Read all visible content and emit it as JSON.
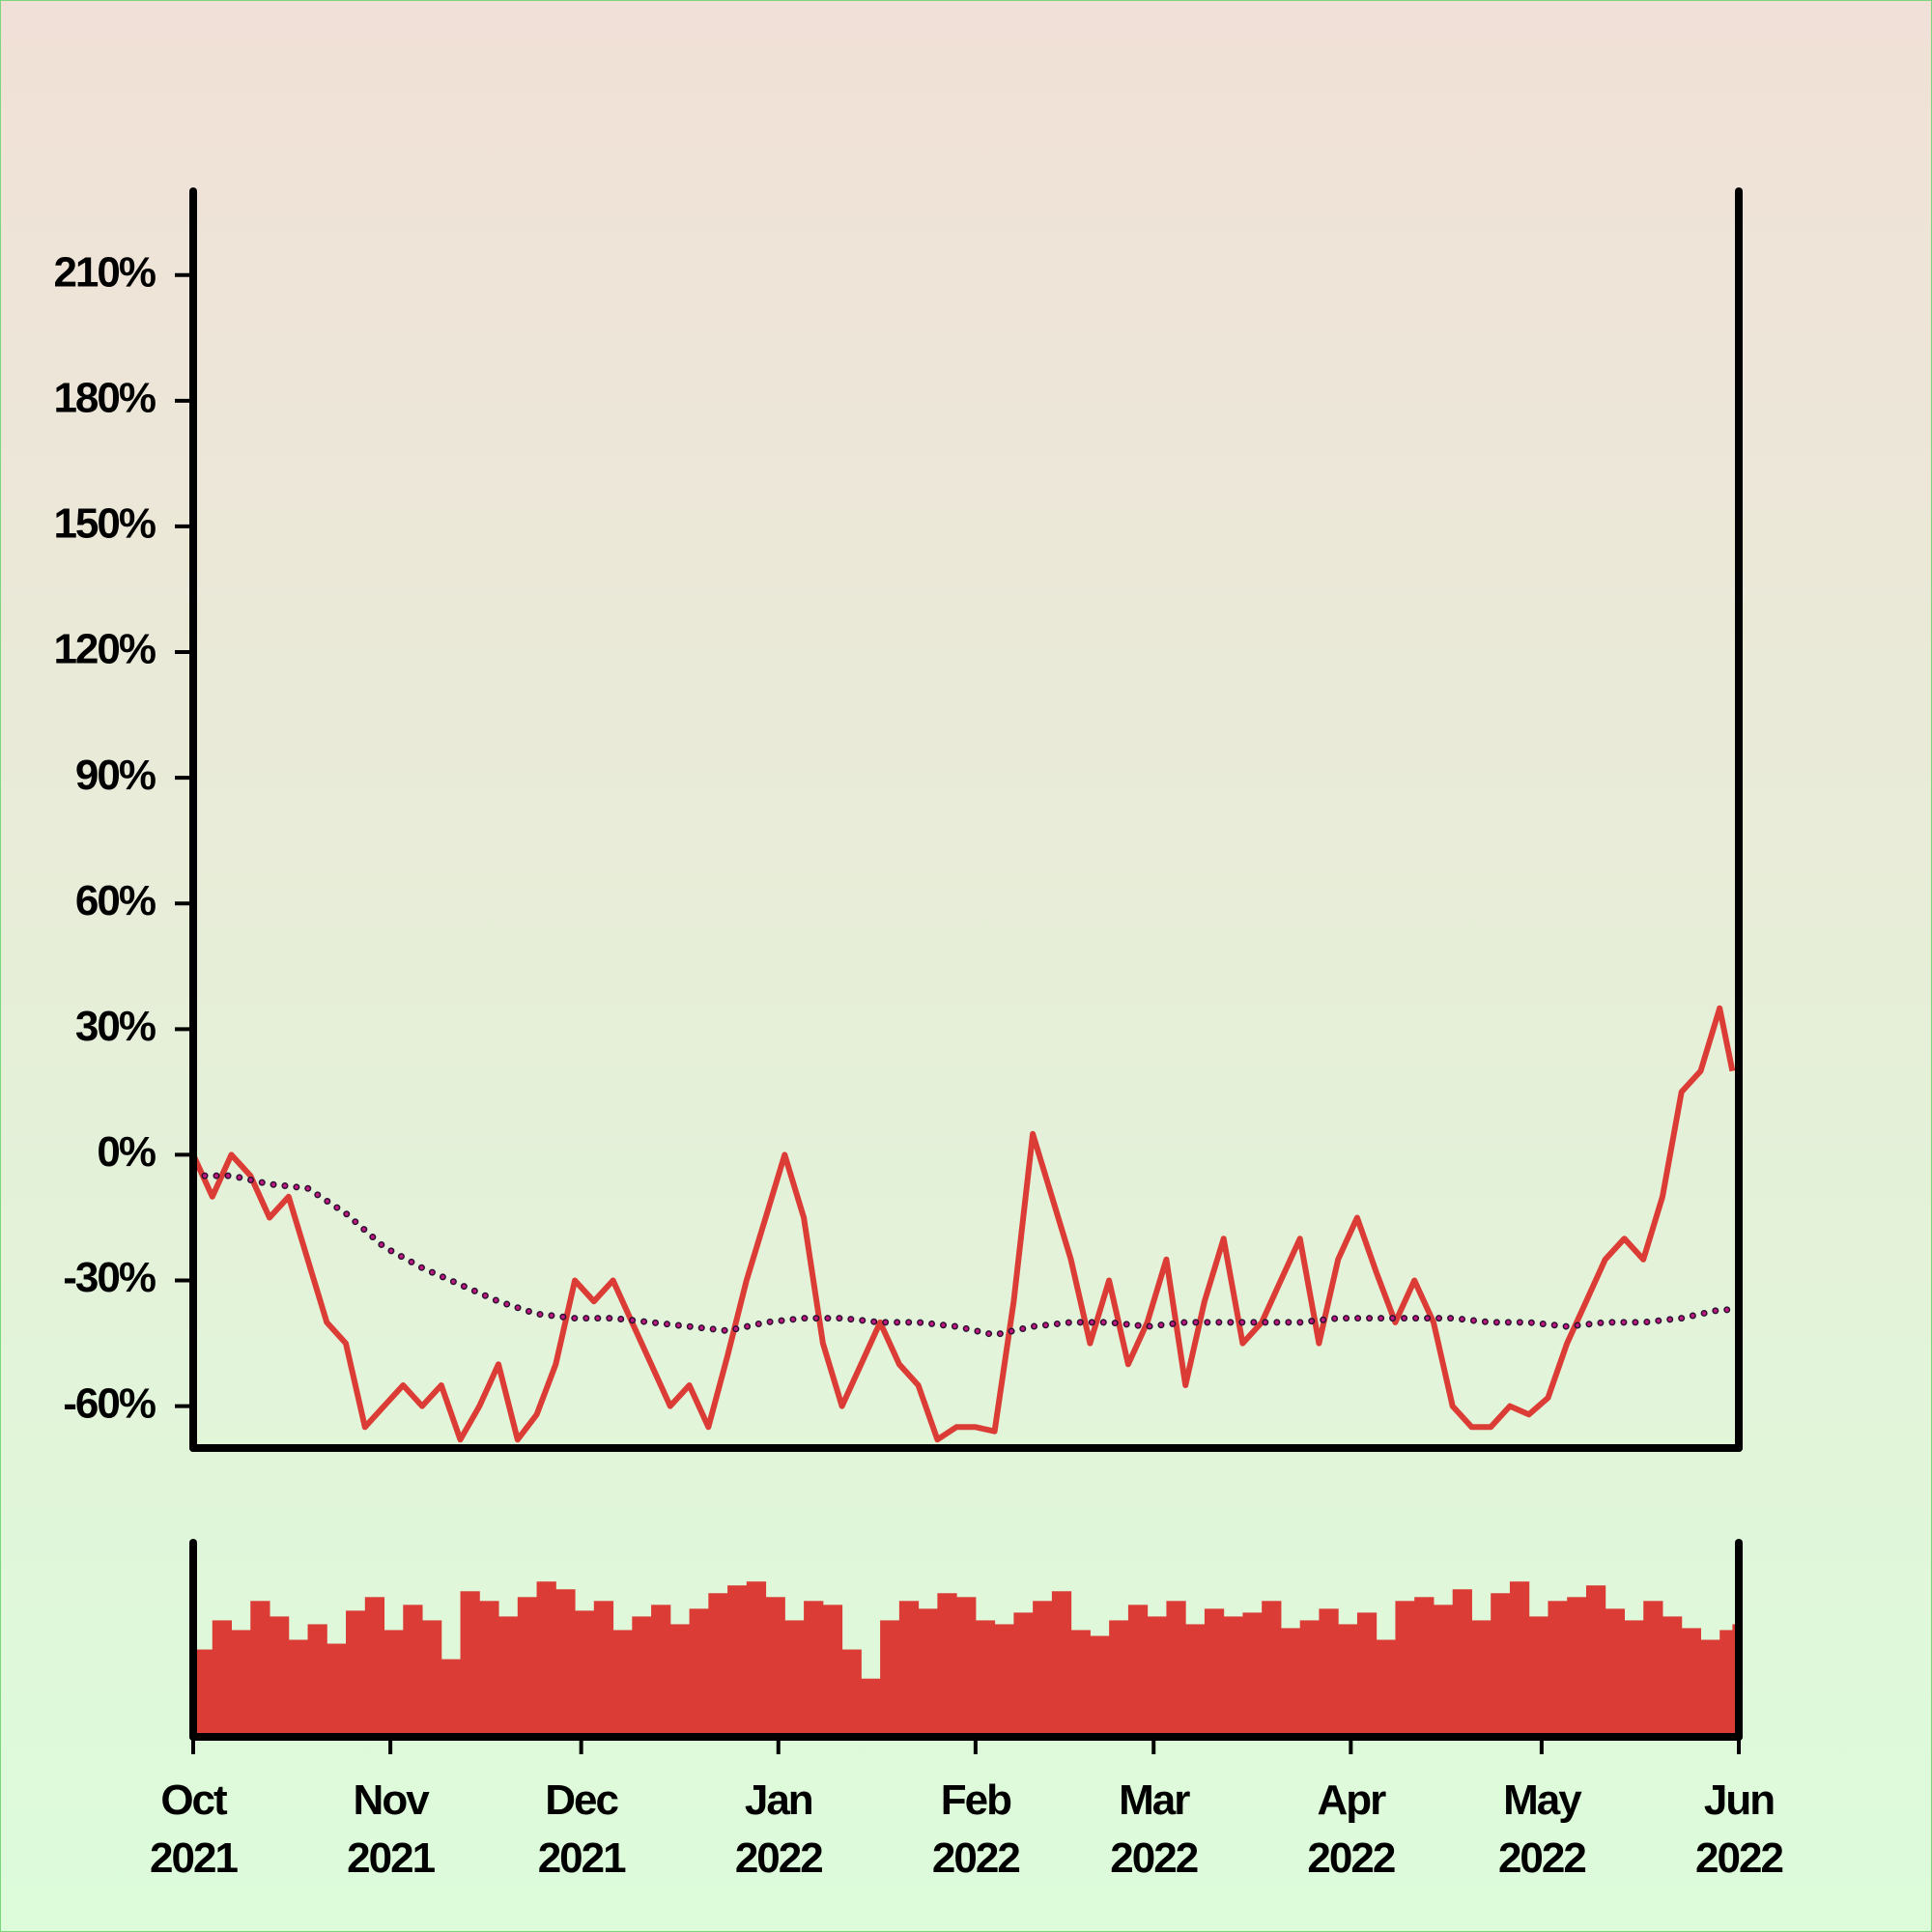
{
  "chart_data": [
    {
      "type": "line",
      "xlim": [
        0,
        243
      ],
      "ylim": [
        -70,
        230
      ],
      "yticks": [
        {
          "value": -60,
          "label": "-60%"
        },
        {
          "value": -30,
          "label": "-30%"
        },
        {
          "value": 0,
          "label": "0%"
        },
        {
          "value": 30,
          "label": "30%"
        },
        {
          "value": 60,
          "label": "60%"
        },
        {
          "value": 90,
          "label": "90%"
        },
        {
          "value": 120,
          "label": "120%"
        },
        {
          "value": 150,
          "label": "150%"
        },
        {
          "value": 180,
          "label": "180%"
        },
        {
          "value": 210,
          "label": "210%"
        }
      ],
      "series": [
        {
          "color": "#dc3c36",
          "x": [
            0,
            3,
            6,
            9,
            12,
            15,
            18,
            21,
            24,
            27,
            30,
            33,
            36,
            39,
            42,
            45,
            48,
            51,
            54,
            57,
            60,
            63,
            66,
            69,
            72,
            75,
            78,
            81,
            84,
            87,
            90,
            93,
            96,
            99,
            102,
            105,
            108,
            111,
            114,
            117,
            120,
            123,
            126,
            129,
            132,
            135,
            138,
            141,
            144,
            147,
            150,
            153,
            156,
            159,
            162,
            165,
            168,
            171,
            174,
            177,
            180,
            183,
            186,
            189,
            192,
            195,
            198,
            201,
            204,
            207,
            210,
            213,
            216,
            219,
            222,
            225,
            228,
            231,
            234,
            237,
            240,
            242
          ],
          "values": [
            0,
            -10,
            0,
            -5,
            -15,
            -10,
            -25,
            -40,
            -45,
            -65,
            -60,
            -55,
            -60,
            -55,
            -68,
            -60,
            -50,
            -68,
            -62,
            -50,
            -30,
            -35,
            -30,
            -40,
            -50,
            -60,
            -55,
            -65,
            -48,
            -30,
            -15,
            0,
            -15,
            -45,
            -60,
            -50,
            -40,
            -50,
            -55,
            -68,
            -65,
            -65,
            -66,
            -35,
            5,
            -10,
            -25,
            -45,
            -30,
            -50,
            -40,
            -25,
            -55,
            -35,
            -20,
            -45,
            -40,
            -30,
            -20,
            -45,
            -25,
            -15,
            -28,
            -40,
            -30,
            -40,
            -60,
            -65,
            -65,
            -60,
            -62,
            -58,
            -45,
            -35,
            -25,
            -20,
            -25,
            -10,
            15,
            20,
            35,
            20
          ]
        },
        {
          "color": "#c0187f",
          "x": [
            0,
            6,
            12,
            18,
            24,
            30,
            36,
            42,
            48,
            54,
            60,
            66,
            72,
            78,
            84,
            90,
            96,
            102,
            108,
            114,
            120,
            126,
            132,
            138,
            144,
            150,
            156,
            162,
            168,
            174,
            180,
            186,
            192,
            198,
            204,
            210,
            216,
            222,
            228,
            234,
            240,
            242
          ],
          "values": [
            -5,
            -5,
            -7,
            -8,
            -14,
            -22,
            -27,
            -31,
            -35,
            -38,
            -39,
            -39,
            -40,
            -41,
            -42,
            -40,
            -39,
            -39,
            -40,
            -40,
            -41,
            -43,
            -41,
            -40,
            -40,
            -41,
            -40,
            -40,
            -40,
            -40,
            -39,
            -39,
            -39,
            -39,
            -40,
            -40,
            -41,
            -40,
            -40,
            -39,
            -37,
            -37
          ]
        }
      ]
    },
    {
      "type": "bar",
      "xlim": [
        0,
        243
      ],
      "ylim": [
        0,
        100
      ],
      "color": "#dc3c36",
      "xticks": [
        {
          "value": 0,
          "label": [
            "Oct",
            "2021"
          ]
        },
        {
          "value": 31,
          "label": [
            "Nov",
            "2021"
          ]
        },
        {
          "value": 61,
          "label": [
            "Dec",
            "2021"
          ]
        },
        {
          "value": 92,
          "label": [
            "Jan",
            "2022"
          ]
        },
        {
          "value": 123,
          "label": [
            "Feb",
            "2022"
          ]
        },
        {
          "value": 151,
          "label": [
            "Mar",
            "2022"
          ]
        },
        {
          "value": 182,
          "label": [
            "Apr",
            "2022"
          ]
        },
        {
          "value": 212,
          "label": [
            "May",
            "2022"
          ]
        },
        {
          "value": 243,
          "label": [
            "Jun",
            "2022"
          ]
        }
      ],
      "x": [
        0,
        3,
        6,
        9,
        12,
        15,
        18,
        21,
        24,
        27,
        30,
        33,
        36,
        39,
        42,
        45,
        48,
        51,
        54,
        57,
        60,
        63,
        66,
        69,
        72,
        75,
        78,
        81,
        84,
        87,
        90,
        93,
        96,
        99,
        102,
        105,
        108,
        111,
        114,
        117,
        120,
        123,
        126,
        129,
        132,
        135,
        138,
        141,
        144,
        147,
        150,
        153,
        156,
        159,
        162,
        165,
        168,
        171,
        174,
        177,
        180,
        183,
        186,
        189,
        192,
        195,
        198,
        201,
        204,
        207,
        210,
        213,
        216,
        219,
        222,
        225,
        228,
        231,
        234,
        237,
        240,
        242
      ],
      "values": [
        45,
        60,
        55,
        70,
        62,
        50,
        58,
        48,
        65,
        72,
        55,
        68,
        60,
        40,
        75,
        70,
        62,
        72,
        80,
        76,
        65,
        70,
        55,
        62,
        68,
        58,
        66,
        74,
        78,
        80,
        72,
        60,
        70,
        68,
        45,
        30,
        60,
        70,
        66,
        74,
        72,
        60,
        58,
        64,
        70,
        75,
        55,
        52,
        60,
        68,
        62,
        70,
        58,
        66,
        62,
        64,
        70,
        56,
        60,
        66,
        58,
        64,
        50,
        70,
        72,
        68,
        76,
        60,
        74,
        80,
        62,
        70,
        72,
        78,
        66,
        60,
        70,
        62,
        56,
        50,
        55,
        58
      ]
    }
  ]
}
